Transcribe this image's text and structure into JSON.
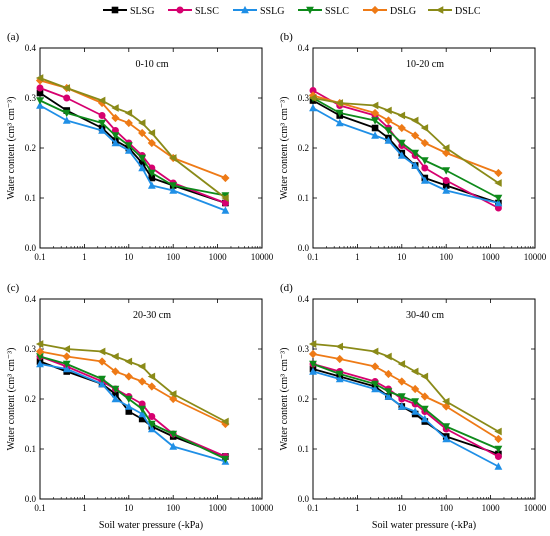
{
  "legend": [
    {
      "name": "SLSG",
      "color": "#000000",
      "marker": "square"
    },
    {
      "name": "SLSC",
      "color": "#d6006f",
      "marker": "circle"
    },
    {
      "name": "SSLG",
      "color": "#1f8fe6",
      "marker": "triangle-up"
    },
    {
      "name": "SSLC",
      "color": "#0e8a1b",
      "marker": "triangle-down"
    },
    {
      "name": "DSLG",
      "color": "#ee7a16",
      "marker": "diamond"
    },
    {
      "name": "DSLC",
      "color": "#8a8a18",
      "marker": "triangle-left"
    }
  ],
  "x_tick_labels": [
    "0.1",
    "1",
    "10",
    "100",
    "1000",
    "10000"
  ],
  "y_tick_labels": [
    "0.0",
    "0.1",
    "0.2",
    "0.3",
    "0.4"
  ],
  "xlabel": "Soil water  pressure (-kPa)",
  "ylabel": "Water content (cm³ cm⁻³)",
  "chart_data": [
    {
      "type": "line",
      "panel": "(a)",
      "depth": "0-10 cm",
      "x_scale": "log",
      "xlim": [
        0.1,
        10000
      ],
      "ylim": [
        0,
        0.4
      ],
      "x": [
        0.1,
        0.4,
        2.5,
        5,
        10,
        20,
        33,
        100,
        1500
      ],
      "series": [
        {
          "name": "SLSG",
          "values": [
            0.31,
            0.275,
            0.24,
            0.215,
            0.2,
            0.17,
            0.14,
            0.125,
            0.09
          ]
        },
        {
          "name": "SLSC",
          "values": [
            0.32,
            0.3,
            0.265,
            0.235,
            0.21,
            0.185,
            0.16,
            0.13,
            0.09
          ]
        },
        {
          "name": "SSLG",
          "values": [
            0.285,
            0.255,
            0.235,
            0.21,
            0.195,
            0.16,
            0.125,
            0.115,
            0.075
          ]
        },
        {
          "name": "SSLC",
          "values": [
            0.295,
            0.27,
            0.25,
            0.225,
            0.205,
            0.18,
            0.15,
            0.125,
            0.105
          ]
        },
        {
          "name": "DSLG",
          "values": [
            0.335,
            0.32,
            0.29,
            0.26,
            0.25,
            0.23,
            0.21,
            0.18,
            0.14
          ]
        },
        {
          "name": "DSLC",
          "values": [
            0.34,
            0.32,
            0.295,
            0.28,
            0.27,
            0.25,
            0.23,
            0.18,
            0.1
          ]
        }
      ]
    },
    {
      "type": "line",
      "panel": "(b)",
      "depth": "10-20 cm",
      "x_scale": "log",
      "xlim": [
        0.1,
        10000
      ],
      "ylim": [
        0,
        0.4
      ],
      "x": [
        0.1,
        0.4,
        2.5,
        5,
        10,
        20,
        33,
        100,
        1500
      ],
      "series": [
        {
          "name": "SLSG",
          "values": [
            0.295,
            0.265,
            0.24,
            0.22,
            0.19,
            0.165,
            0.14,
            0.125,
            0.09
          ]
        },
        {
          "name": "SLSC",
          "values": [
            0.315,
            0.285,
            0.265,
            0.24,
            0.205,
            0.185,
            0.16,
            0.135,
            0.08
          ]
        },
        {
          "name": "SSLG",
          "values": [
            0.28,
            0.25,
            0.225,
            0.215,
            0.185,
            0.165,
            0.135,
            0.115,
            0.09
          ]
        },
        {
          "name": "SSLC",
          "values": [
            0.3,
            0.27,
            0.255,
            0.235,
            0.21,
            0.19,
            0.175,
            0.155,
            0.1
          ]
        },
        {
          "name": "DSLG",
          "values": [
            0.305,
            0.29,
            0.27,
            0.255,
            0.24,
            0.225,
            0.21,
            0.19,
            0.15
          ]
        },
        {
          "name": "DSLC",
          "values": [
            0.3,
            0.29,
            0.285,
            0.275,
            0.265,
            0.255,
            0.24,
            0.2,
            0.13
          ]
        }
      ]
    },
    {
      "type": "line",
      "panel": "(c)",
      "depth": "20-30 cm",
      "x_scale": "log",
      "xlim": [
        0.1,
        10000
      ],
      "ylim": [
        0,
        0.4
      ],
      "x": [
        0.1,
        0.4,
        2.5,
        5,
        10,
        20,
        33,
        100,
        1500
      ],
      "series": [
        {
          "name": "SLSG",
          "values": [
            0.275,
            0.255,
            0.23,
            0.21,
            0.175,
            0.16,
            0.145,
            0.125,
            0.085
          ]
        },
        {
          "name": "SLSC",
          "values": [
            0.285,
            0.265,
            0.235,
            0.22,
            0.205,
            0.19,
            0.165,
            0.13,
            0.085
          ]
        },
        {
          "name": "SSLG",
          "values": [
            0.27,
            0.26,
            0.23,
            0.2,
            0.185,
            0.17,
            0.14,
            0.105,
            0.075
          ]
        },
        {
          "name": "SSLC",
          "values": [
            0.285,
            0.27,
            0.24,
            0.22,
            0.2,
            0.18,
            0.15,
            0.13,
            0.08
          ]
        },
        {
          "name": "DSLG",
          "values": [
            0.295,
            0.285,
            0.275,
            0.255,
            0.245,
            0.235,
            0.225,
            0.2,
            0.15
          ]
        },
        {
          "name": "DSLC",
          "values": [
            0.31,
            0.3,
            0.295,
            0.285,
            0.275,
            0.265,
            0.245,
            0.21,
            0.155
          ]
        }
      ]
    },
    {
      "type": "line",
      "panel": "(d)",
      "depth": "30-40 cm",
      "x_scale": "log",
      "xlim": [
        0.1,
        10000
      ],
      "ylim": [
        0,
        0.4
      ],
      "x": [
        0.1,
        0.4,
        2.5,
        5,
        10,
        20,
        33,
        100,
        1500
      ],
      "series": [
        {
          "name": "SLSG",
          "values": [
            0.26,
            0.245,
            0.225,
            0.205,
            0.185,
            0.17,
            0.155,
            0.125,
            0.09
          ]
        },
        {
          "name": "SLSC",
          "values": [
            0.27,
            0.255,
            0.235,
            0.22,
            0.2,
            0.19,
            0.175,
            0.14,
            0.085
          ]
        },
        {
          "name": "SSLG",
          "values": [
            0.255,
            0.24,
            0.22,
            0.205,
            0.185,
            0.175,
            0.16,
            0.12,
            0.065
          ]
        },
        {
          "name": "SSLC",
          "values": [
            0.27,
            0.25,
            0.23,
            0.215,
            0.205,
            0.195,
            0.18,
            0.145,
            0.1
          ]
        },
        {
          "name": "DSLG",
          "values": [
            0.29,
            0.28,
            0.265,
            0.25,
            0.235,
            0.22,
            0.205,
            0.185,
            0.12
          ]
        },
        {
          "name": "DSLC",
          "values": [
            0.31,
            0.305,
            0.295,
            0.285,
            0.27,
            0.255,
            0.245,
            0.195,
            0.135
          ]
        }
      ]
    }
  ]
}
